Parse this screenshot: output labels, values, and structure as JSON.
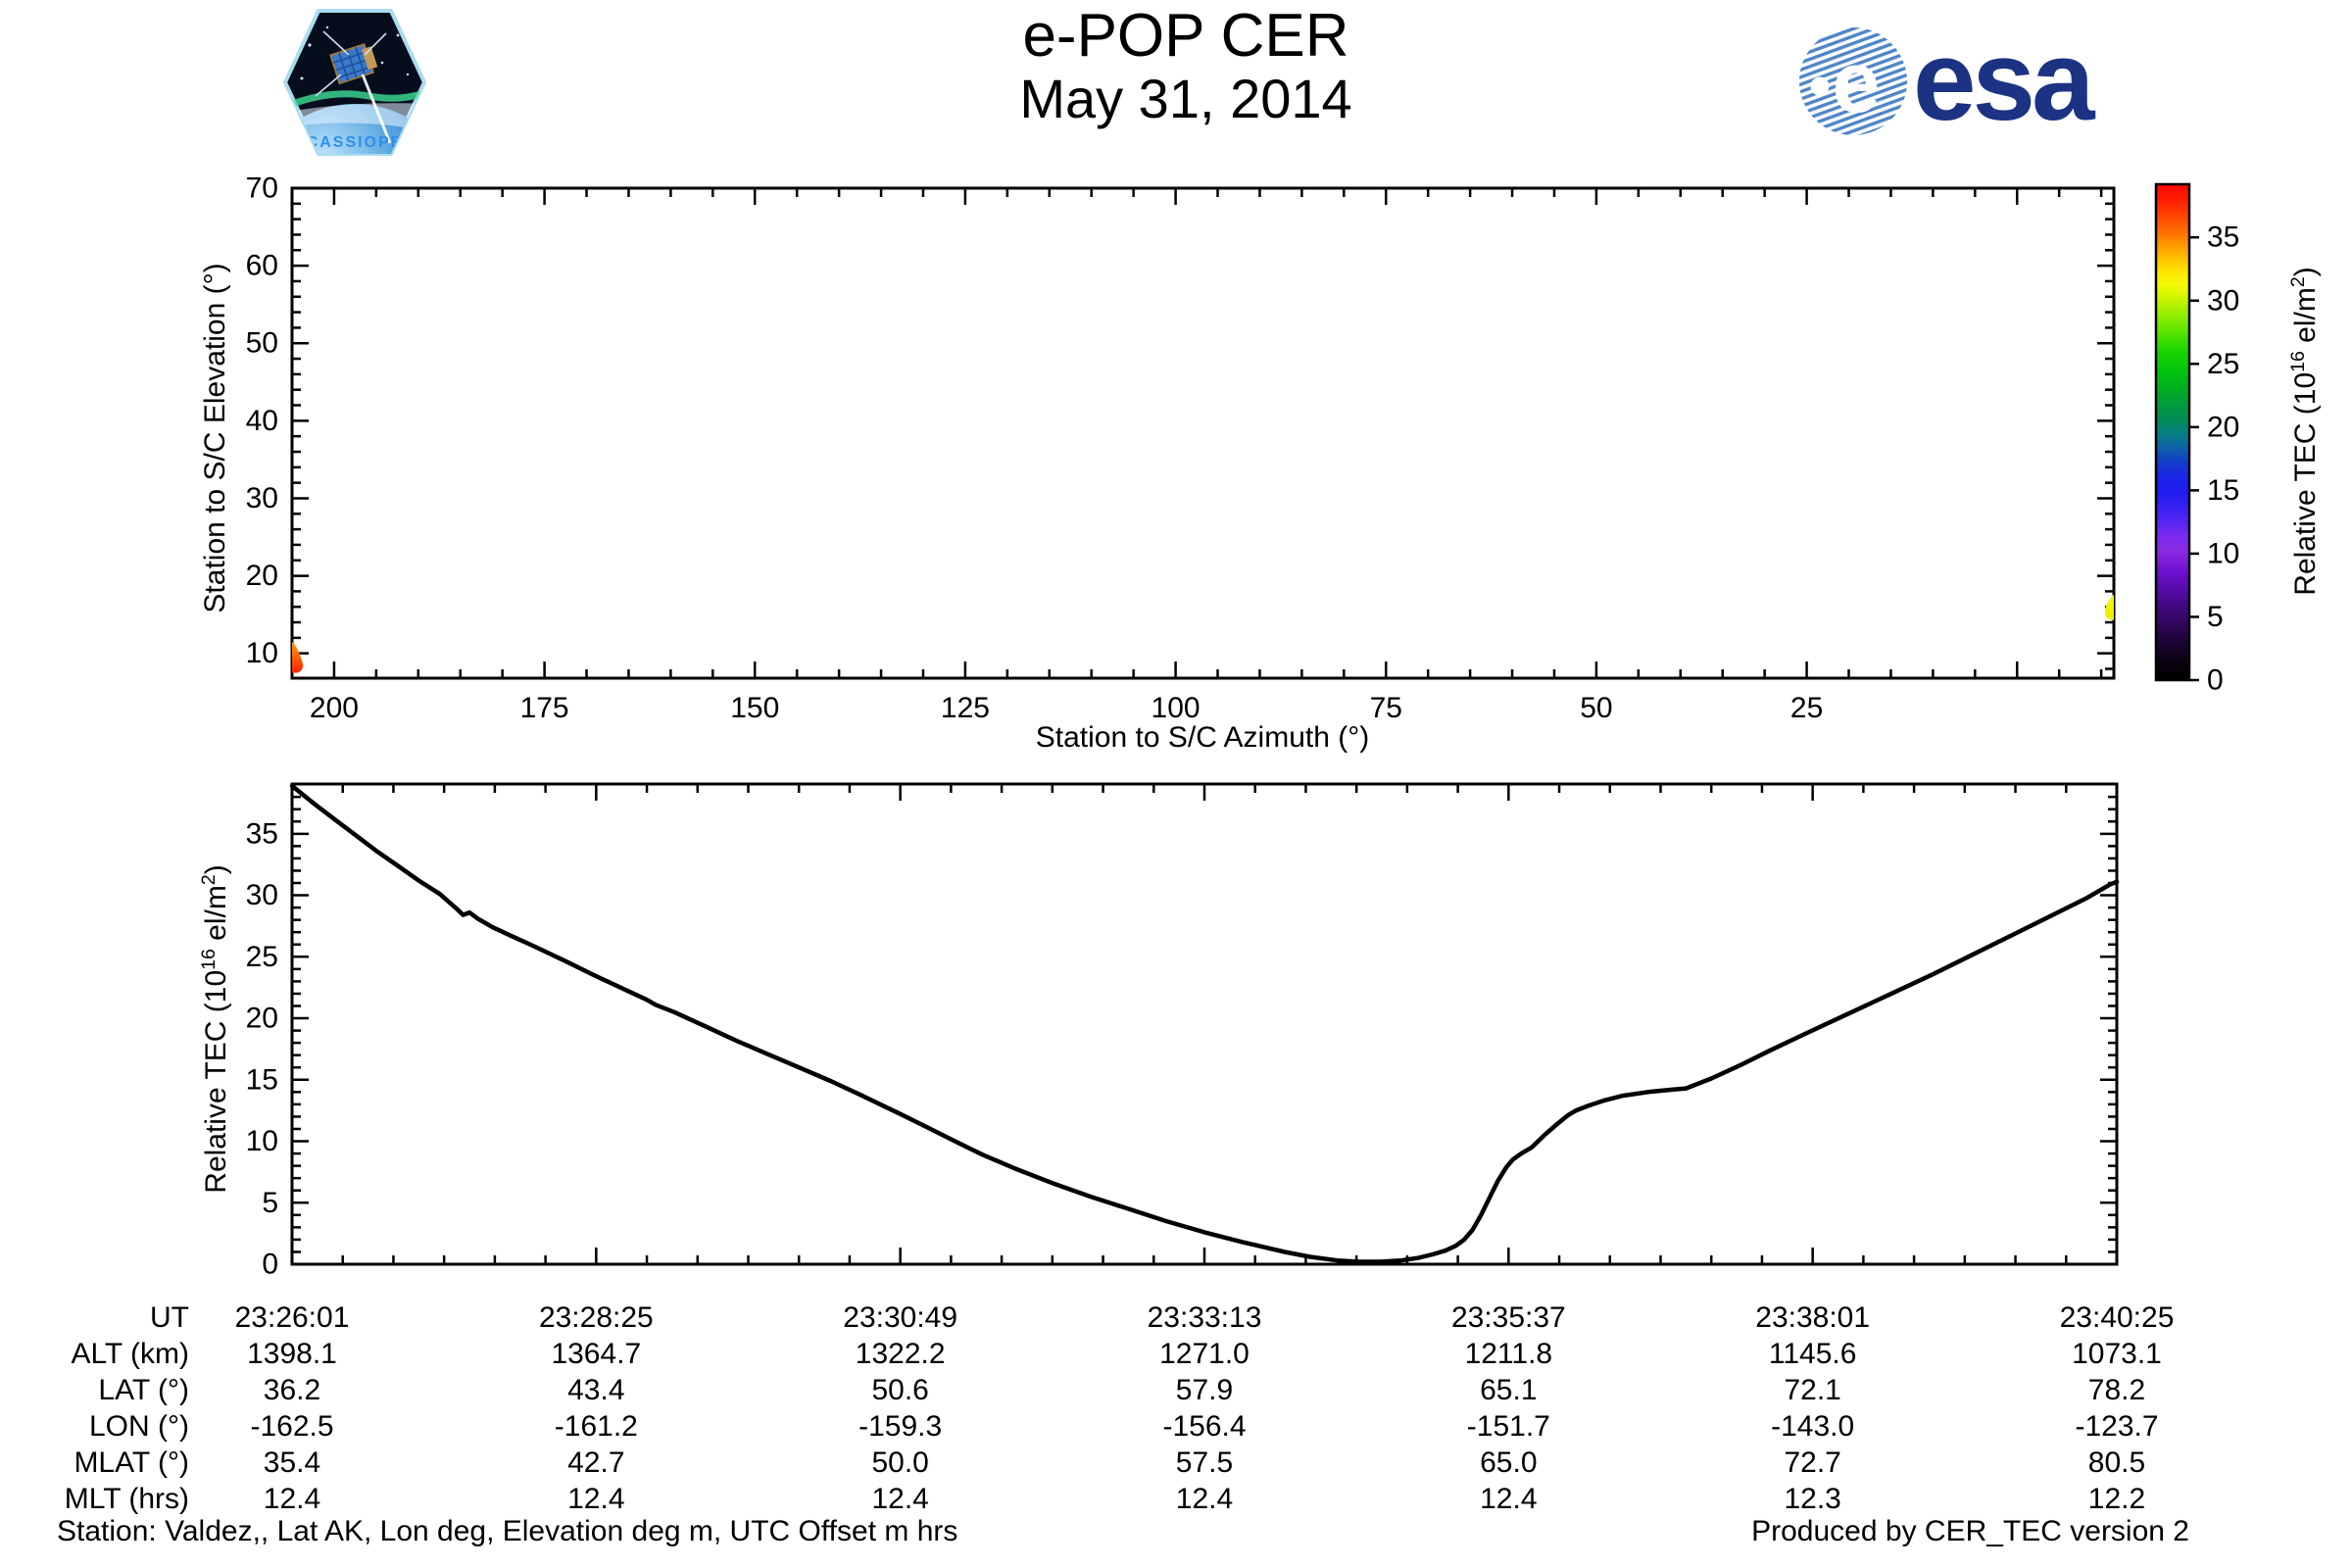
{
  "header": {
    "title_line1": "e-POP CER",
    "title_line2": "May 31, 2014",
    "cassiope_label": "CASSIOPE",
    "esa_wordmark": "esa"
  },
  "colors": {
    "background": "#ffffff",
    "axis": "#000000",
    "curve": "#000000",
    "esa_blue": "#1c3384",
    "esa_stripe_blue": "#4f86c8",
    "cassiope_text_blue": "#2e8fe8",
    "blob_start_top": "#ffa000",
    "blob_start_bottom": "#ff2000",
    "blob_end_yellow": "#f0f000"
  },
  "chart_data": [
    {
      "id": "elevation-vs-azimuth",
      "type": "scatter",
      "xlabel": "Station to S/C Azimuth (°)",
      "ylabel": "Station to S/C Elevation (°)",
      "xlim": [
        205,
        -11.5
      ],
      "ylim": [
        6.8,
        70
      ],
      "xticks": [
        200,
        175,
        150,
        125,
        100,
        75,
        50,
        25
      ],
      "yticks": [
        10,
        20,
        30,
        40,
        50,
        60,
        70
      ],
      "x_minor_step": 5,
      "y_minor_step": 2,
      "grid": false,
      "points": [
        {
          "name": "pass-start",
          "azimuth": 204,
          "elevation_span": [
            7.5,
            11.5
          ],
          "tec_span": [
            38.8,
            35.0
          ],
          "colors": [
            "#ffa000",
            "#ff2000"
          ]
        },
        {
          "name": "pass-end",
          "azimuth": -10.8,
          "elevation_span": [
            14.3,
            17.6
          ],
          "tec_span": [
            30.0,
            31.0
          ],
          "colors": [
            "#f6f600",
            "#e8ee00"
          ]
        }
      ],
      "colorbar": {
        "label": "Relative TEC (10^16 el/m^2)",
        "label_parts": {
          "prefix": "Relative TEC (10",
          "sup": "16",
          "mid": " el/m",
          "sup2": "2",
          "suffix": ")"
        },
        "ticks": [
          0,
          5,
          10,
          15,
          20,
          25,
          30,
          35
        ],
        "range": [
          0,
          39.2
        ],
        "stops": [
          [
            0.0,
            "#000000"
          ],
          [
            0.04,
            "#0b0214"
          ],
          [
            0.08,
            "#1d0438"
          ],
          [
            0.13,
            "#38076c"
          ],
          [
            0.18,
            "#560ba6"
          ],
          [
            0.22,
            "#6f10d0"
          ],
          [
            0.26,
            "#8b2be2"
          ],
          [
            0.29,
            "#7a2af0"
          ],
          [
            0.32,
            "#5526f2"
          ],
          [
            0.35,
            "#3520f0"
          ],
          [
            0.38,
            "#211cf4"
          ],
          [
            0.41,
            "#1a25e8"
          ],
          [
            0.44,
            "#143ec8"
          ],
          [
            0.47,
            "#0d62a4"
          ],
          [
            0.495,
            "#077d85"
          ],
          [
            0.52,
            "#038a5e"
          ],
          [
            0.55,
            "#00983e"
          ],
          [
            0.58,
            "#00ab26"
          ],
          [
            0.62,
            "#00c30e"
          ],
          [
            0.66,
            "#16d400"
          ],
          [
            0.7,
            "#55e400"
          ],
          [
            0.74,
            "#98ee00"
          ],
          [
            0.775,
            "#d5f600"
          ],
          [
            0.8,
            "#f8fa00"
          ],
          [
            0.825,
            "#ffe400"
          ],
          [
            0.85,
            "#ffc100"
          ],
          [
            0.875,
            "#ff9b00"
          ],
          [
            0.9,
            "#ff7300"
          ],
          [
            0.93,
            "#ff4c00"
          ],
          [
            0.96,
            "#ff2600"
          ],
          [
            1.0,
            "#fe0600"
          ]
        ]
      }
    },
    {
      "id": "relative-tec-vs-time",
      "type": "line",
      "ylabel": "Relative TEC (10^16 el/m^2)",
      "ylabel_parts": {
        "prefix": "Relative TEC (10",
        "sup": "16",
        "mid": " el/m",
        "sup2": "2",
        "suffix": ")"
      },
      "yticks": [
        0,
        5,
        10,
        15,
        20,
        25,
        30,
        35
      ],
      "ylim": [
        0,
        39.05
      ],
      "y_minor_step": 1,
      "x_range_seconds": [
        0,
        864
      ],
      "x_major_ticks_seconds": [
        0,
        144,
        288,
        432,
        576,
        720,
        864
      ],
      "x_minor_step_seconds": 24,
      "x_tick_labels": [
        "23:26:01",
        "23:28:25",
        "23:30:49",
        "23:33:13",
        "23:35:37",
        "23:38:01",
        "23:40:25"
      ],
      "grid": false,
      "series": [
        {
          "name": "Relative TEC",
          "points_t_v": [
            [
              0,
              38.9
            ],
            [
              10,
              37.5
            ],
            [
              20,
              36.2
            ],
            [
              30,
              34.9
            ],
            [
              40,
              33.6
            ],
            [
              50,
              32.4
            ],
            [
              60,
              31.2
            ],
            [
              70,
              30.1
            ],
            [
              78,
              28.9
            ],
            [
              81,
              28.4
            ],
            [
              84,
              28.6
            ],
            [
              88,
              28.1
            ],
            [
              95,
              27.4
            ],
            [
              105,
              26.6
            ],
            [
              114,
              25.9
            ],
            [
              130,
              24.6
            ],
            [
              143,
              23.5
            ],
            [
              158,
              22.3
            ],
            [
              168,
              21.5
            ],
            [
              172,
              21.1
            ],
            [
              181,
              20.5
            ],
            [
              195,
              19.4
            ],
            [
              210,
              18.2
            ],
            [
              225,
              17.1
            ],
            [
              240,
              16.0
            ],
            [
              255,
              14.9
            ],
            [
              270,
              13.7
            ],
            [
              287,
              12.3
            ],
            [
              300,
              11.2
            ],
            [
              315,
              9.9
            ],
            [
              327,
              8.9
            ],
            [
              342,
              7.8
            ],
            [
              360,
              6.6
            ],
            [
              378,
              5.5
            ],
            [
              396,
              4.5
            ],
            [
              414,
              3.5
            ],
            [
              432,
              2.6
            ],
            [
              450,
              1.8
            ],
            [
              460,
              1.4
            ],
            [
              470,
              1.0
            ],
            [
              482,
              0.6
            ],
            [
              495,
              0.3
            ],
            [
              505,
              0.2
            ],
            [
              515,
              0.2
            ],
            [
              525,
              0.3
            ],
            [
              533,
              0.5
            ],
            [
              540,
              0.8
            ],
            [
              546,
              1.1
            ],
            [
              551,
              1.5
            ],
            [
              555,
              2.0
            ],
            [
              559,
              2.8
            ],
            [
              563,
              4.0
            ],
            [
              567,
              5.4
            ],
            [
              571,
              6.8
            ],
            [
              575,
              7.9
            ],
            [
              578,
              8.5
            ],
            [
              582,
              9.0
            ],
            [
              587,
              9.5
            ],
            [
              593,
              10.5
            ],
            [
              599,
              11.4
            ],
            [
              604,
              12.1
            ],
            [
              608,
              12.5
            ],
            [
              614,
              12.9
            ],
            [
              621,
              13.3
            ],
            [
              630,
              13.7
            ],
            [
              642,
              14.0
            ],
            [
              654,
              14.2
            ],
            [
              660,
              14.3
            ],
            [
              672,
              15.1
            ],
            [
              686,
              16.2
            ],
            [
              700,
              17.4
            ],
            [
              716,
              18.7
            ],
            [
              736,
              20.3
            ],
            [
              756,
              21.9
            ],
            [
              776,
              23.5
            ],
            [
              796,
              25.2
            ],
            [
              816,
              26.9
            ],
            [
              836,
              28.6
            ],
            [
              850,
              29.8
            ],
            [
              857,
              30.5
            ],
            [
              861,
              30.9
            ],
            [
              864,
              31.1
            ]
          ]
        }
      ]
    }
  ],
  "table": {
    "row_labels": [
      "UT",
      "ALT (km)",
      "LAT (°)",
      "LON (°)",
      "MLAT (°)",
      "MLT (hrs)"
    ],
    "rows": [
      [
        "23:26:01",
        "23:28:25",
        "23:30:49",
        "23:33:13",
        "23:35:37",
        "23:38:01",
        "23:40:25"
      ],
      [
        "1398.1",
        "1364.7",
        "1322.2",
        "1271.0",
        "1211.8",
        "1145.6",
        "1073.1"
      ],
      [
        "36.2",
        "43.4",
        "50.6",
        "57.9",
        "65.1",
        "72.1",
        "78.2"
      ],
      [
        "-162.5",
        "-161.2",
        "-159.3",
        "-156.4",
        "-151.7",
        "-143.0",
        "-123.7"
      ],
      [
        "35.4",
        "42.7",
        "50.0",
        "57.5",
        "65.0",
        "72.7",
        "80.5"
      ],
      [
        "12.4",
        "12.4",
        "12.4",
        "12.4",
        "12.4",
        "12.3",
        "12.2"
      ]
    ]
  },
  "footer": {
    "left": "Station: Valdez,, Lat AK, Lon deg, Elevation deg m, UTC Offset m hrs",
    "right": "Produced by CER_TEC version 2"
  }
}
